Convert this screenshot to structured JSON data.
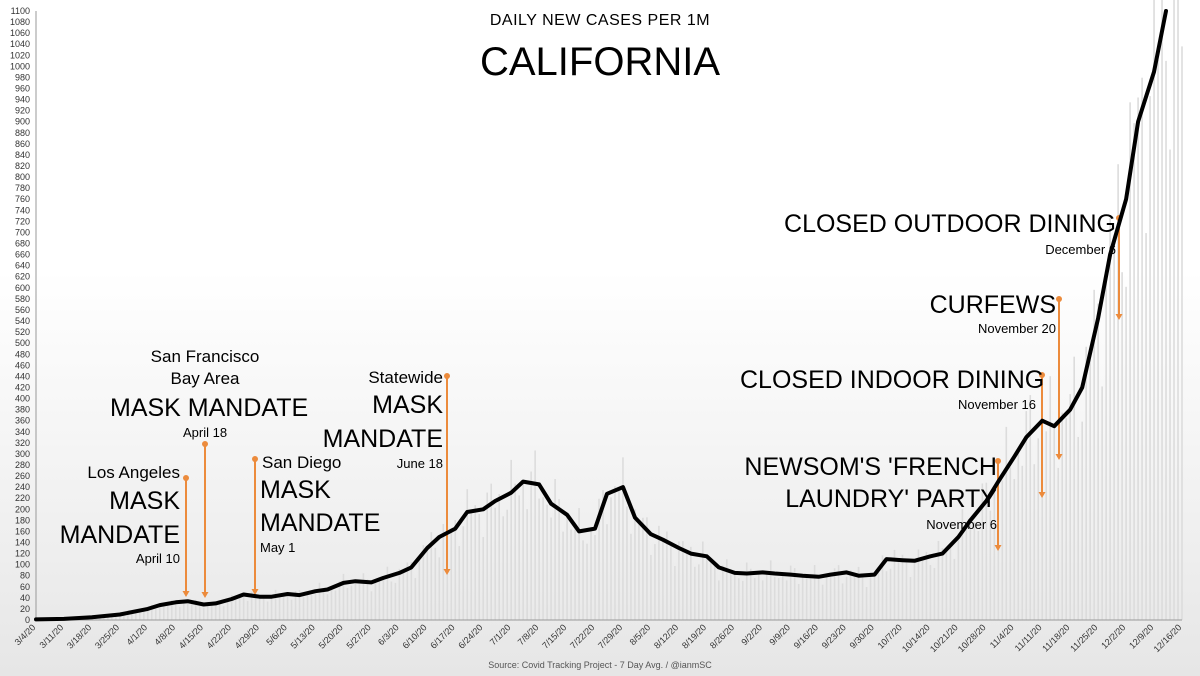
{
  "header": {
    "subtitle": "DAILY NEW CASES PER 1M",
    "title": "CALIFORNIA"
  },
  "source": "Source: Covid Tracking Project - 7 Day Avg. / @ianmSC",
  "colors": {
    "line": "#000000",
    "bars": "#dcdcdc",
    "marker": "#ec8b3c"
  },
  "annotations": {
    "la": {
      "place": "Los Angeles",
      "mandate1": "MASK",
      "mandate2": "MANDATE",
      "date": "April 10"
    },
    "sf": {
      "place1": "San Francisco",
      "place2": "Bay Area",
      "mandate": "MASK MANDATE",
      "date": "April 18"
    },
    "sd": {
      "place": "San Diego",
      "mandate1": "MASK",
      "mandate2": "MANDATE",
      "date": "May 1"
    },
    "statewide": {
      "place": "Statewide",
      "mandate1": "MASK",
      "mandate2": "MANDATE",
      "date": "June 18"
    },
    "newsom": {
      "line1": "NEWSOM'S 'FRENCH",
      "line2": "LAUNDRY' PARTY",
      "date": "November 6"
    },
    "indoor": {
      "label": "CLOSED INDOOR DINING",
      "date": "November 16"
    },
    "curfews": {
      "label": "CURFEWS",
      "date": "November 20"
    },
    "outdoor": {
      "label": "CLOSED OUTDOOR DINING",
      "date": "December 6"
    }
  },
  "chart_data": {
    "type": "line",
    "title": "CALIFORNIA",
    "subtitle": "DAILY NEW CASES PER 1M",
    "ylim": [
      0,
      1100
    ],
    "yticks": [
      0,
      20,
      40,
      60,
      80,
      100,
      120,
      140,
      160,
      180,
      200,
      220,
      240,
      260,
      280,
      300,
      320,
      340,
      360,
      380,
      400,
      420,
      440,
      460,
      480,
      500,
      520,
      540,
      560,
      580,
      600,
      620,
      640,
      660,
      680,
      700,
      720,
      740,
      760,
      780,
      800,
      820,
      840,
      860,
      880,
      900,
      920,
      940,
      960,
      980,
      1000,
      1020,
      1040,
      1060,
      1080,
      1100
    ],
    "grid": false,
    "legend": "none",
    "x_categories": [
      "3/4/20",
      "3/11/20",
      "3/18/20",
      "3/25/20",
      "4/1/20",
      "4/8/20",
      "4/15/20",
      "4/22/20",
      "4/29/20",
      "5/6/20",
      "5/13/20",
      "5/20/20",
      "5/27/20",
      "6/3/20",
      "6/10/20",
      "6/17/20",
      "6/24/20",
      "7/1/20",
      "7/8/20",
      "7/15/20",
      "7/22/20",
      "7/29/20",
      "8/5/20",
      "8/12/20",
      "8/19/20",
      "8/26/20",
      "9/2/20",
      "9/9/20",
      "9/16/20",
      "9/23/20",
      "9/30/20",
      "10/7/20",
      "10/14/20",
      "10/21/20",
      "10/28/20",
      "11/4/20",
      "11/11/20",
      "11/18/20",
      "11/25/20",
      "12/2/20",
      "12/9/20",
      "12/16/20"
    ],
    "series": [
      {
        "x": [
          0,
          7,
          14,
          21,
          28,
          31,
          35,
          38,
          42,
          45,
          49,
          52,
          56,
          59,
          63,
          66,
          70,
          73,
          77,
          80,
          84,
          87,
          91,
          94,
          98,
          101,
          105,
          108,
          112,
          115,
          119,
          122,
          126,
          129,
          133,
          136,
          140,
          143,
          147,
          150,
          154,
          157,
          161,
          164,
          168,
          171,
          175,
          178,
          182,
          185,
          189,
          192,
          196,
          199,
          203,
          206,
          210,
          213,
          217,
          220,
          224,
          227,
          231,
          234,
          238,
          241,
          245,
          248,
          252,
          255,
          259,
          262,
          266,
          269,
          273,
          276,
          280,
          283
        ],
        "values": [
          1,
          2,
          5,
          10,
          20,
          27,
          32,
          34,
          28,
          30,
          38,
          46,
          42,
          42,
          47,
          45,
          52,
          55,
          67,
          70,
          68,
          76,
          85,
          95,
          130,
          150,
          165,
          195,
          200,
          215,
          230,
          250,
          245,
          210,
          190,
          160,
          165,
          228,
          240,
          185,
          155,
          145,
          130,
          120,
          115,
          95,
          85,
          84,
          86,
          84,
          82,
          80,
          78,
          82,
          86,
          80,
          82,
          110,
          108,
          107,
          115,
          120,
          150,
          180,
          215,
          250,
          295,
          330,
          360,
          350,
          380,
          420,
          545,
          660,
          760,
          900,
          990,
          1100
        ]
      }
    ],
    "bar_heights_approx": "daily values shown as light gray bars behind the line",
    "annotations": [
      {
        "label": "Los Angeles MASK MANDATE",
        "date": "April 10"
      },
      {
        "label": "San Francisco Bay Area MASK MANDATE",
        "date": "April 18"
      },
      {
        "label": "San Diego MASK MANDATE",
        "date": "May 1"
      },
      {
        "label": "Statewide MASK MANDATE",
        "date": "June 18"
      },
      {
        "label": "NEWSOM'S 'FRENCH LAUNDRY' PARTY",
        "date": "November 6"
      },
      {
        "label": "CLOSED INDOOR DINING",
        "date": "November 16"
      },
      {
        "label": "CURFEWS",
        "date": "November 20"
      },
      {
        "label": "CLOSED OUTDOOR DINING",
        "date": "December 6"
      }
    ]
  }
}
